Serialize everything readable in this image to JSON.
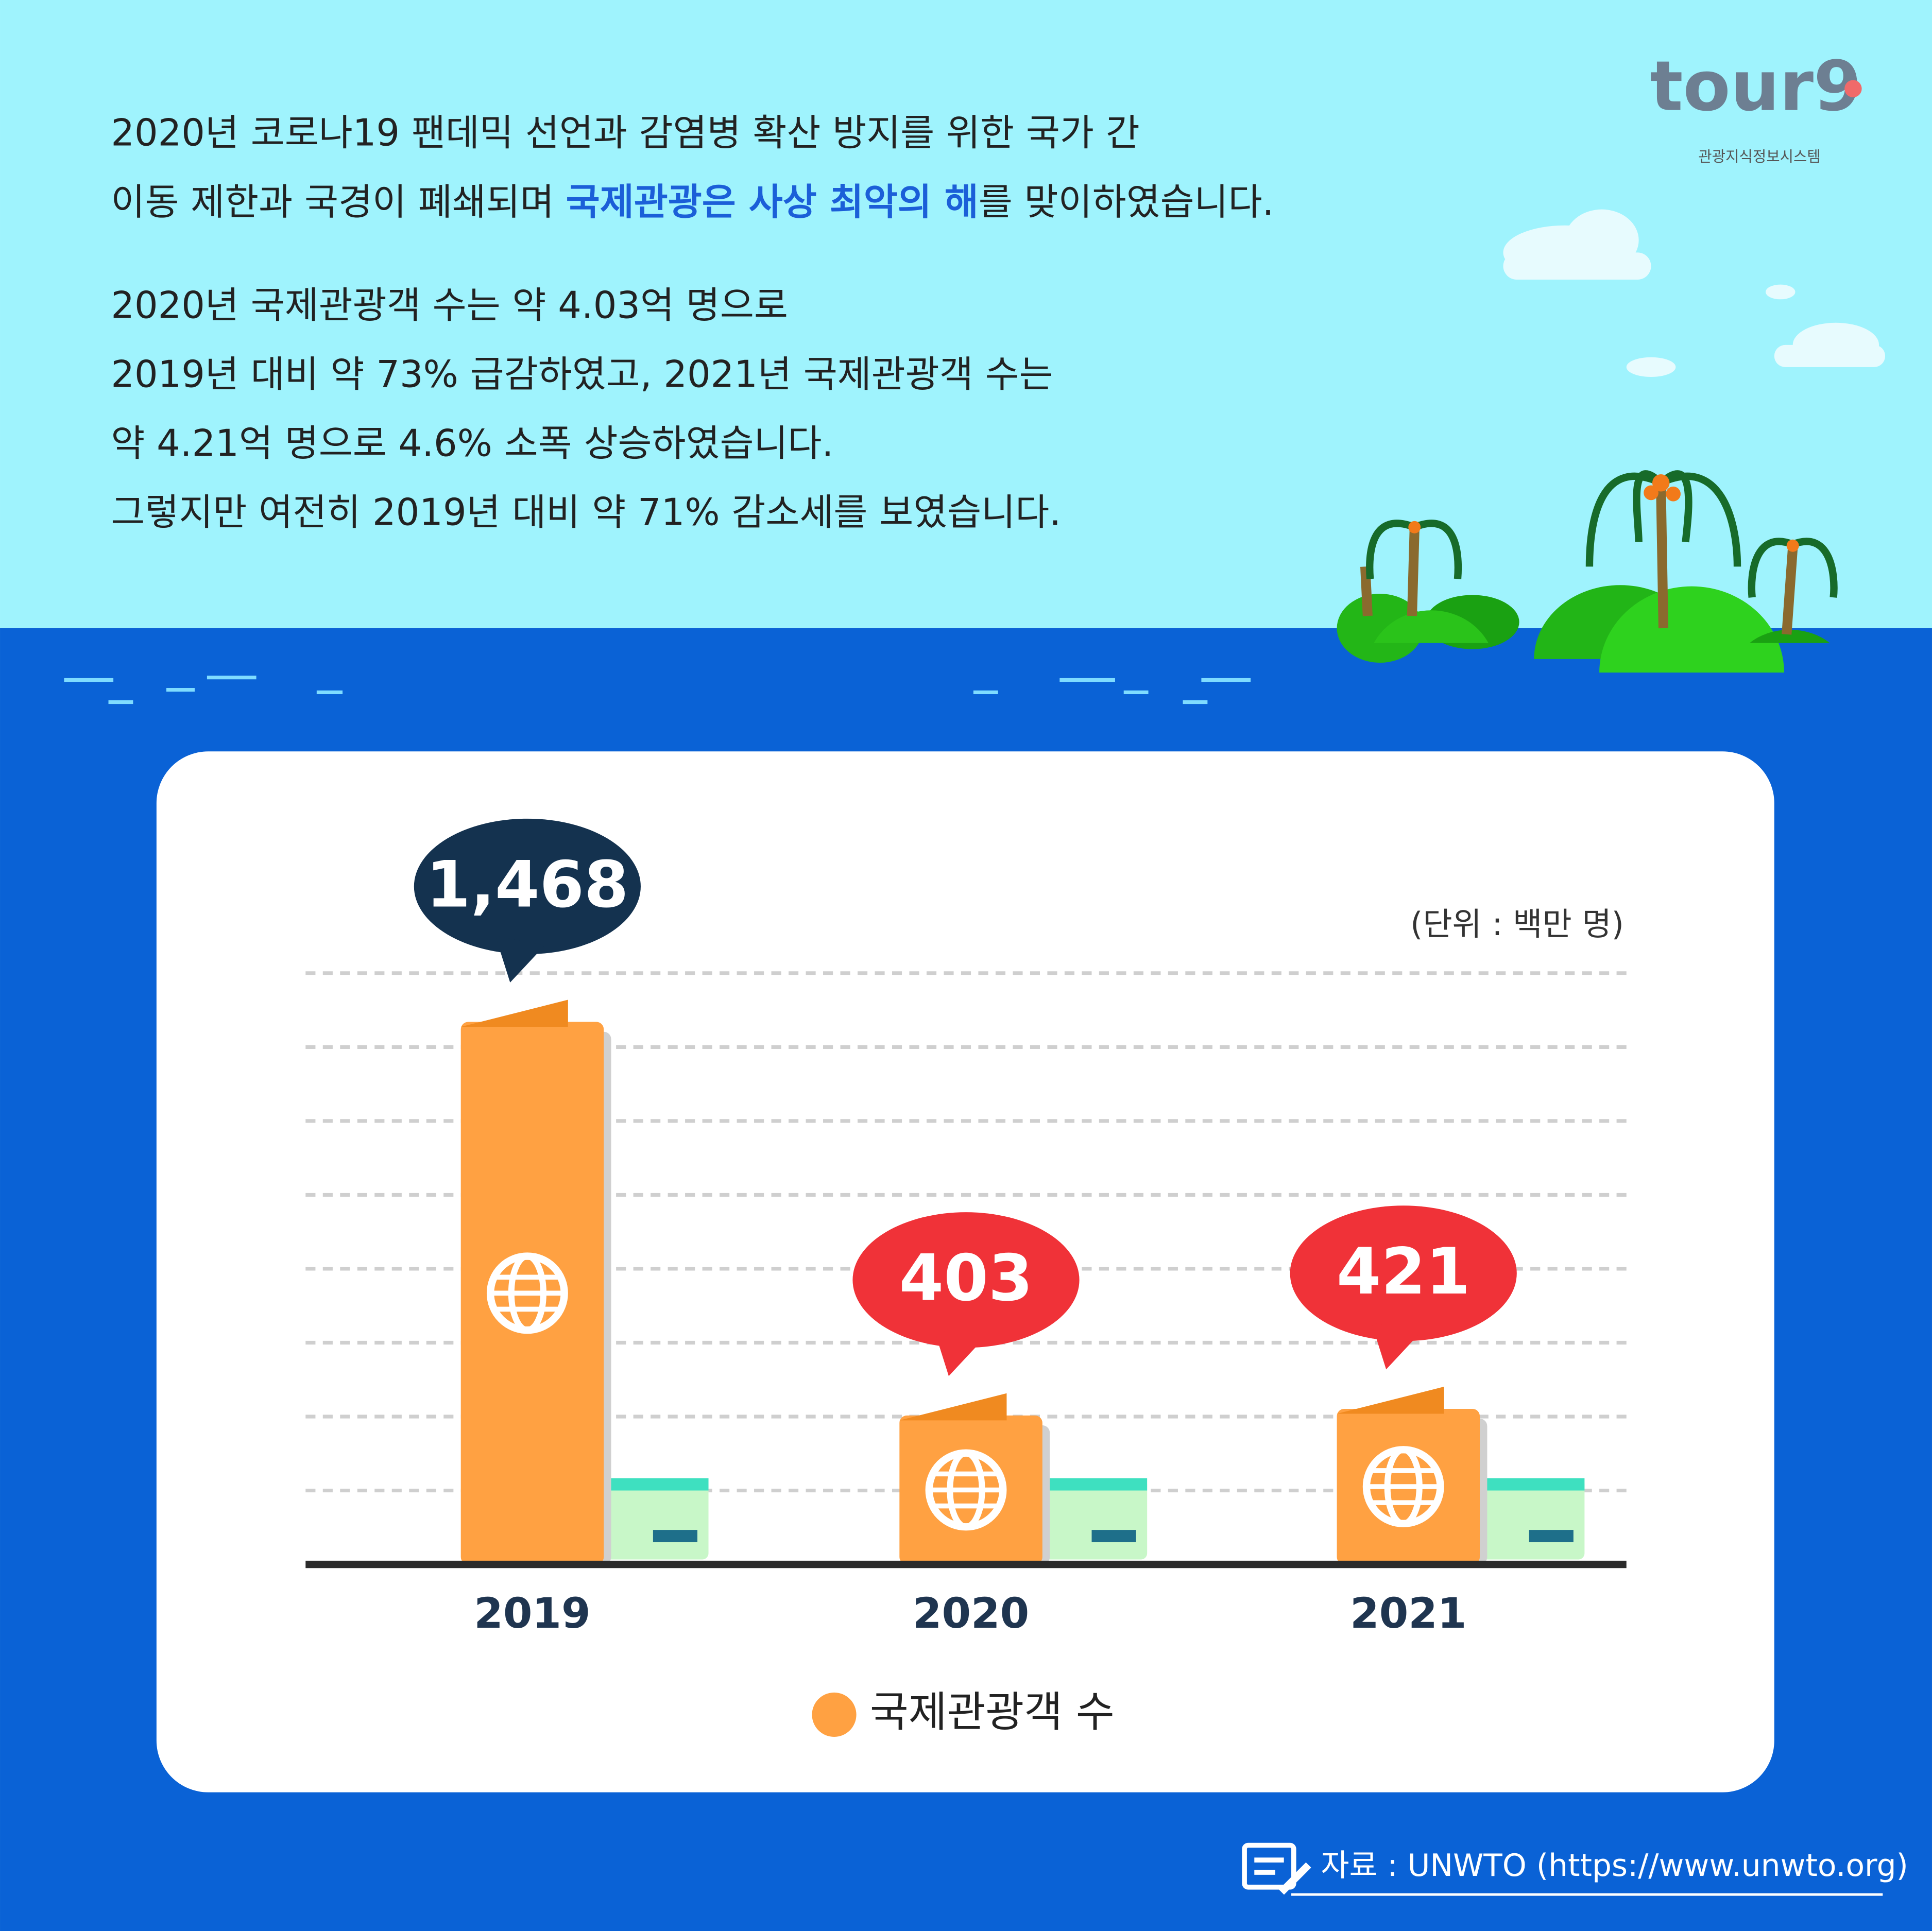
{
  "logo": {
    "mark": "tour9",
    "subtitle": "관광지식정보시스템"
  },
  "intro": {
    "line1": "2020년 코로나19 팬데믹 선언과 감염병 확산 방지를 위한 국가 간",
    "line2_before": "이동 제한과 국경이 폐쇄되며 ",
    "line2_highlight": "국제관광은 사상 최악의 해",
    "line2_after": "를 맞이하였습니다."
  },
  "summary": [
    "2020년 국제관광객 수는 약 4.03억 명으로",
    "2019년 대비 약 73% 급감하였고, 2021년 국제관광객 수는",
    "약 4.21억 명으로 4.6% 소폭 상승하였습니다.",
    "그렇지만 여전히 2019년 대비 약 71% 감소세를 보였습니다."
  ],
  "chart_data": {
    "type": "bar",
    "unit": "(단위 : 백만 명)",
    "categories": [
      "2019",
      "2020",
      "2021"
    ],
    "series": [
      {
        "name": "국제관광객 수",
        "color": "#ffa142",
        "values": [
          1468,
          403,
          421
        ],
        "value_labels": [
          "1,468",
          "403",
          "421"
        ]
      }
    ],
    "ylim": [
      0,
      1600
    ],
    "yticks": [
      0,
      200,
      400,
      600,
      800,
      1000,
      1200,
      1400,
      1600
    ],
    "grid": true
  },
  "source": "자료 : UNWTO (https://www.unwto.org)"
}
